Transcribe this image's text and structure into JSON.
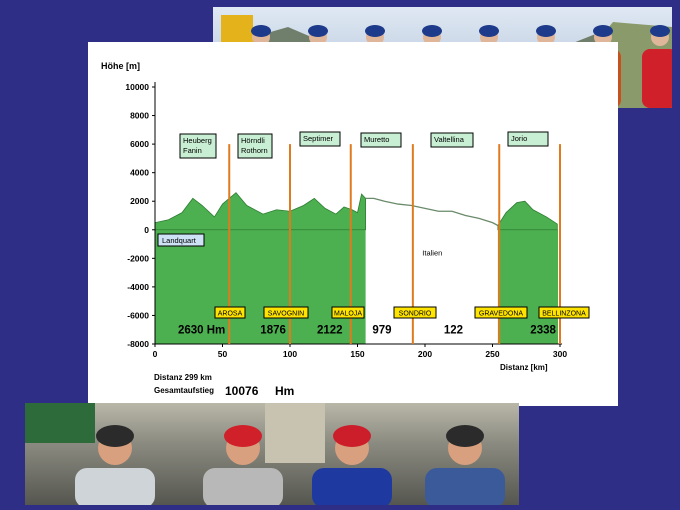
{
  "colors": {
    "background": "#2e2e86",
    "profile_green": "#4caf50",
    "foreign_line": "#6a8a6a",
    "pass_line": "#e07a1f",
    "pass_box": "#c8efd4",
    "town_box": "#ffe400"
  },
  "photos": {
    "top": "group-photo-cyclists-mountain",
    "bottom": "cyclists-closeup-photo"
  },
  "chart_data": {
    "type": "area",
    "ylabel": "Höhe [m]",
    "xlabel": "Distanz [km]",
    "xlim": [
      0,
      300
    ],
    "ylim": [
      -8000,
      10000
    ],
    "x_ticks": [
      0,
      50,
      100,
      150,
      200,
      250,
      300
    ],
    "y_ticks": [
      -8000,
      -6000,
      -4000,
      -2000,
      0,
      2000,
      4000,
      6000,
      8000,
      10000
    ],
    "profile": {
      "x": [
        0,
        10,
        20,
        28,
        35,
        44,
        50,
        60,
        68,
        80,
        90,
        100,
        110,
        118,
        126,
        134,
        140,
        146,
        150,
        153,
        156,
        162,
        170,
        180,
        190,
        200,
        210,
        220,
        230,
        240,
        250,
        254,
        260,
        268,
        274,
        280,
        290,
        298
      ],
      "y": [
        500,
        700,
        1200,
        2200,
        1700,
        900,
        1800,
        2600,
        1700,
        1100,
        1400,
        1300,
        1700,
        2200,
        1500,
        1100,
        1600,
        1400,
        1200,
        2500,
        2200,
        2200,
        2000,
        1800,
        1700,
        1500,
        1300,
        1300,
        1000,
        800,
        500,
        300,
        1200,
        1900,
        2000,
        1400,
        900,
        400
      ]
    },
    "foreign_range": [
      156,
      254
    ],
    "pass_markers": [
      {
        "km": 55,
        "label": "Heuberg\nFanin"
      },
      {
        "km": 100,
        "label": "Hörndli\nRothorn"
      },
      {
        "km": 145,
        "label": "Septimer"
      },
      {
        "km": 191,
        "label": "Muretto"
      },
      {
        "km": 255,
        "label": "Valtellina"
      },
      {
        "km": 300,
        "label": "Jorio"
      }
    ],
    "towns": [
      "AROSA",
      "SAVOGNIN",
      "MALOJA",
      "SONDRIO",
      "GRAVEDONA",
      "BELLINZONA"
    ],
    "start_label": "Landquart",
    "country_label": "Italien",
    "stage_climbs": [
      {
        "value": "2630 Hm",
        "x": 17
      },
      {
        "value": "1876",
        "x": 78
      },
      {
        "value": "2122",
        "x": 120
      },
      {
        "value": "979",
        "x": 161
      },
      {
        "value": "122",
        "x": 214
      },
      {
        "value": "2338",
        "x": 278
      }
    ],
    "distance_total": "Distanz 299 km",
    "total_ascent_label": "Gesamtaufstieg",
    "total_ascent_value": "10076",
    "total_ascent_unit": "Hm"
  }
}
